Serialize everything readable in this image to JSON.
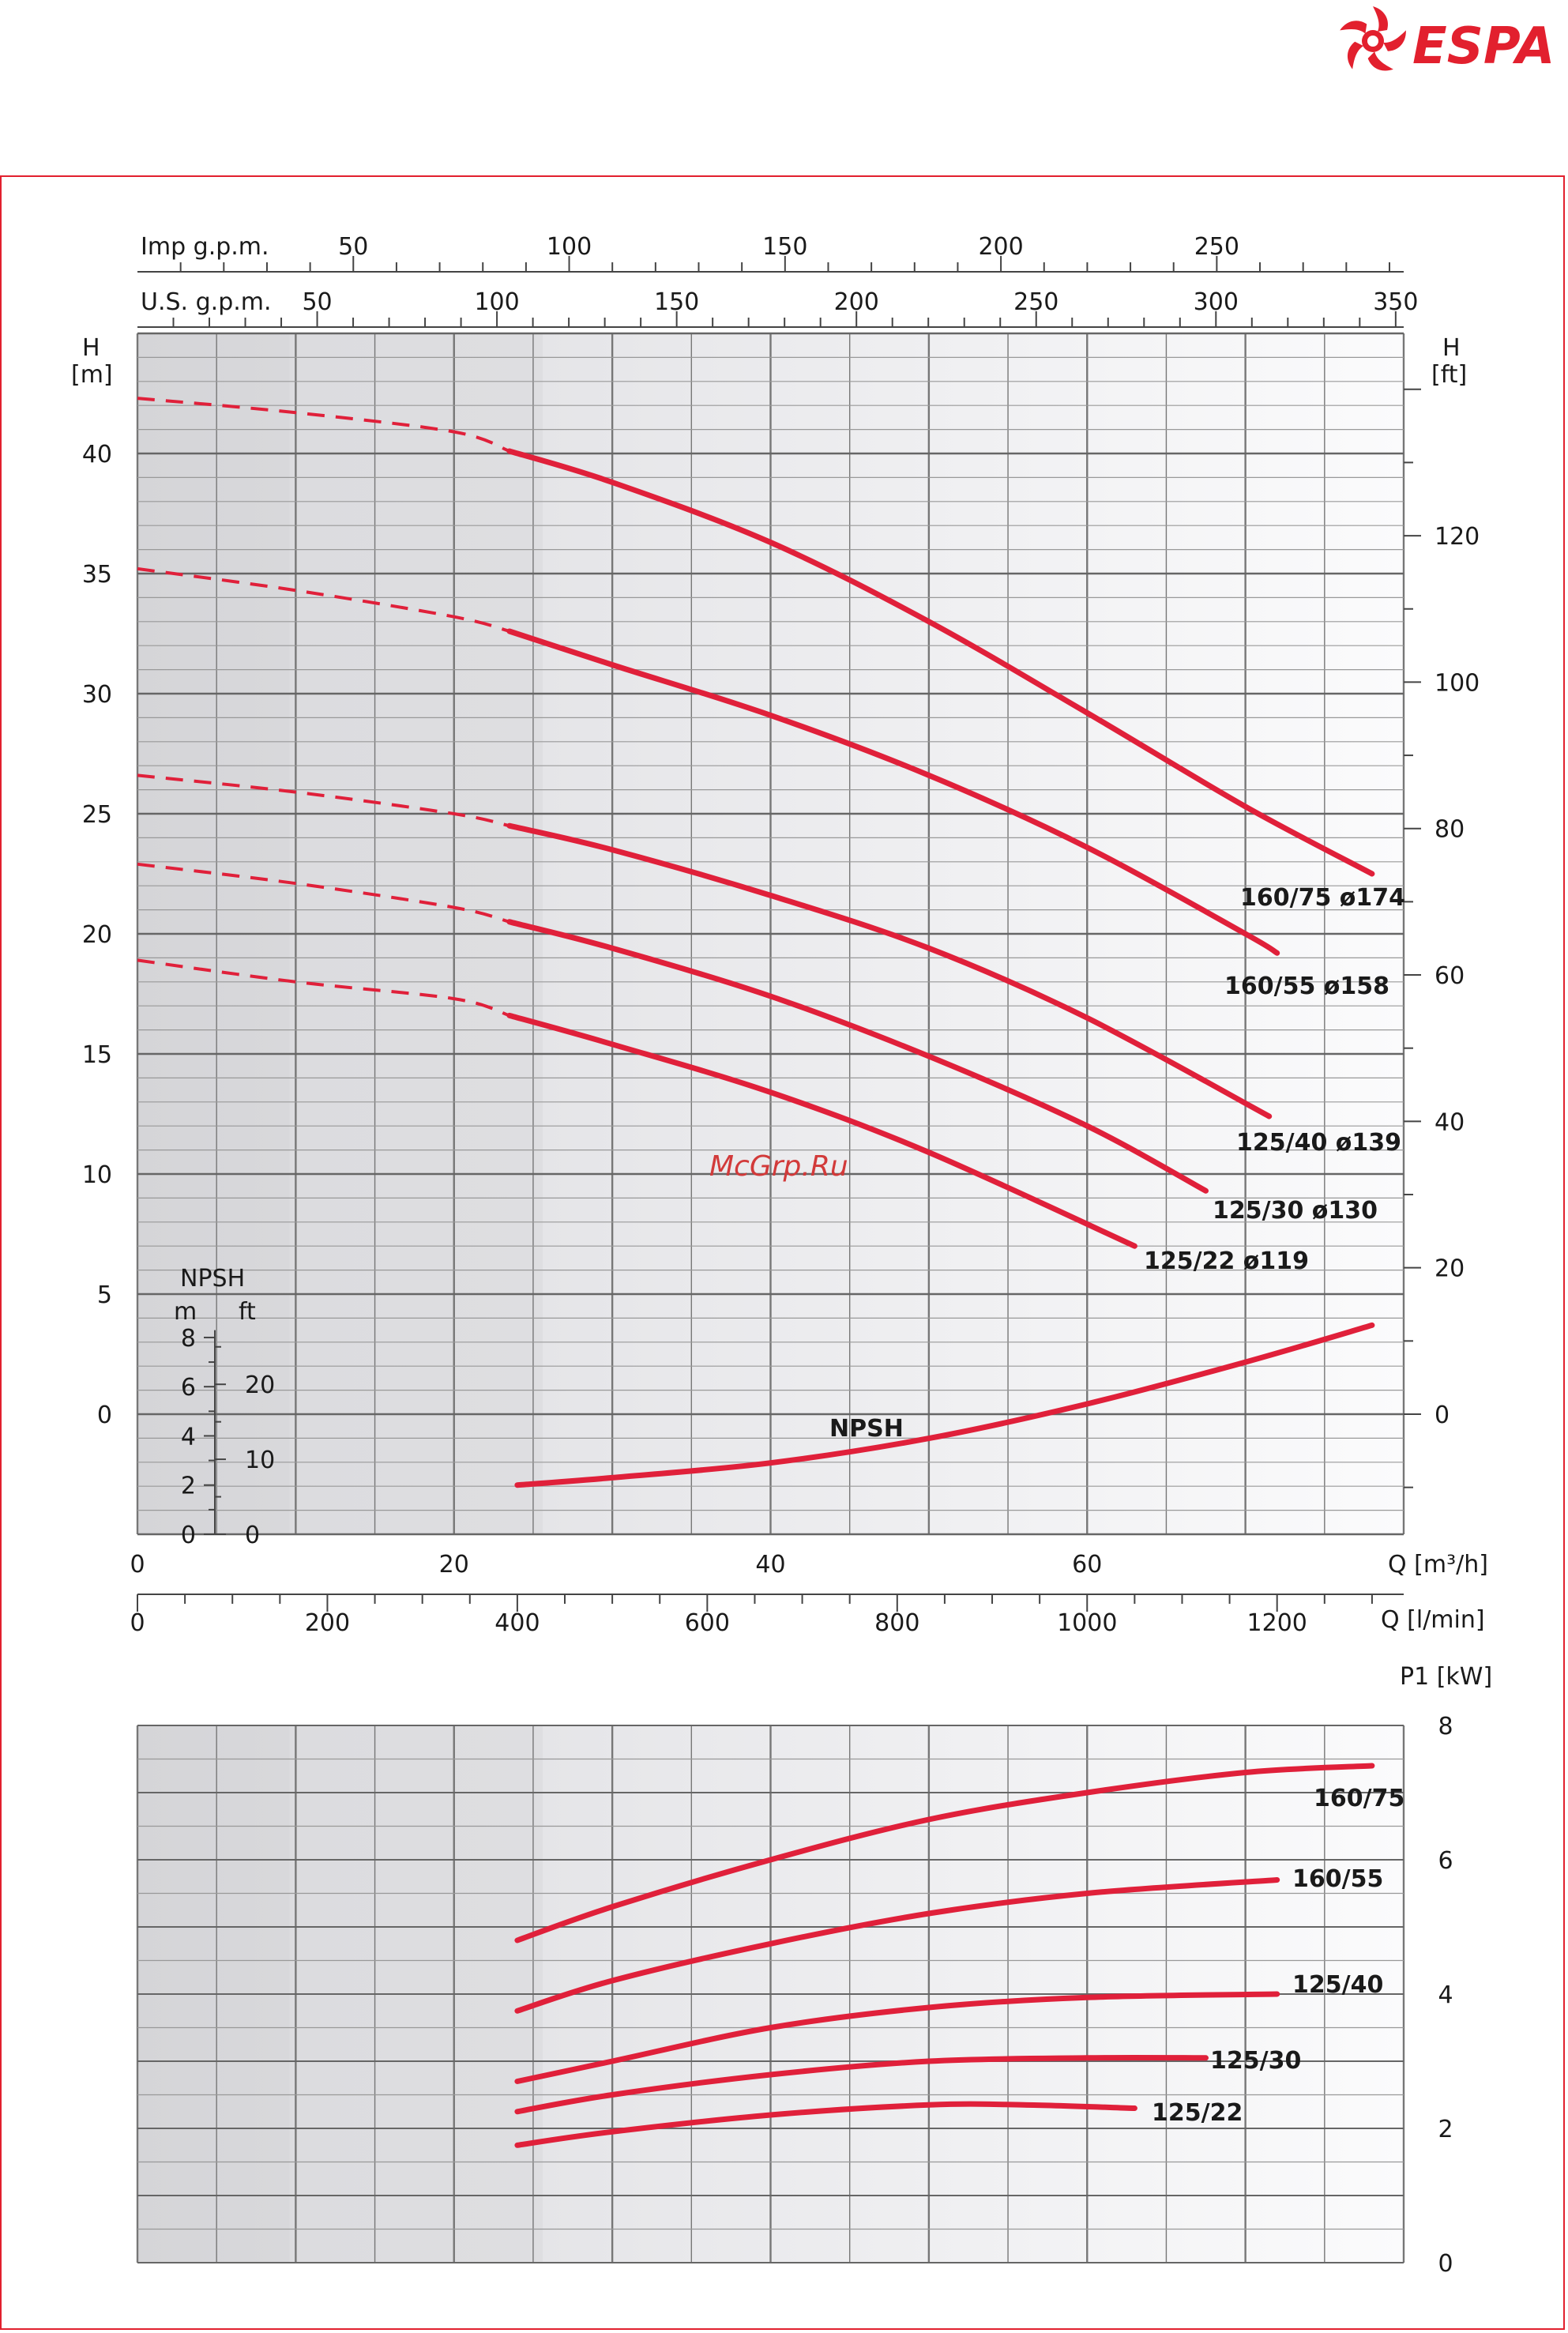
{
  "brand": {
    "name": "ESPA",
    "color": "#e2202e"
  },
  "watermark": "McGrp.Ru",
  "colors": {
    "curve": "#e0203a",
    "grid": "#777777",
    "text": "#1a1a1a"
  },
  "chart_data": [
    {
      "type": "line",
      "panel": "head",
      "x_axis": {
        "label": "Q [m³/h]",
        "range": [
          0,
          80
        ],
        "ticks": [
          0,
          20,
          40,
          60
        ]
      },
      "x_axis_secondary": {
        "label": "Q [l/min]",
        "ticks": [
          0,
          200,
          400,
          600,
          800,
          1000,
          1200
        ]
      },
      "top_axis_imp": {
        "label": "Imp g.p.m.",
        "ticks": [
          50,
          100,
          150,
          200,
          250
        ]
      },
      "top_axis_us": {
        "label": "U.S. g.p.m.",
        "ticks": [
          50,
          100,
          150,
          200,
          250,
          300,
          350
        ]
      },
      "y_axis": {
        "label_top": "H",
        "label_unit": "[m]",
        "range": [
          -5,
          45
        ],
        "ticks": [
          0,
          5,
          10,
          15,
          20,
          25,
          30,
          35,
          40
        ]
      },
      "y_axis_right": {
        "label_top": "H",
        "label_unit": "[ft]",
        "ticks": [
          0,
          20,
          40,
          60,
          80,
          100,
          120
        ]
      },
      "npsh_scale": {
        "title": "NPSH",
        "unit_m": "m",
        "unit_ft": "ft",
        "ticks_m": [
          0,
          2,
          4,
          6,
          8
        ],
        "ticks_ft": [
          0,
          10,
          20
        ]
      },
      "series": [
        {
          "name": "160/75  ø174",
          "dashed": {
            "x": [
              0,
              10,
              20,
              23.5
            ],
            "y": [
              42.3,
              41.7,
              40.9,
              40.1
            ]
          },
          "solid": {
            "x": [
              23.5,
              30,
              40,
              50,
              60,
              70,
              78
            ],
            "y": [
              40.1,
              38.8,
              36.3,
              33.0,
              29.2,
              25.3,
              22.5
            ]
          }
        },
        {
          "name": "160/55  ø158",
          "dashed": {
            "x": [
              0,
              10,
              20,
              23.5
            ],
            "y": [
              35.2,
              34.3,
              33.2,
              32.6
            ]
          },
          "solid": {
            "x": [
              23.5,
              30,
              40,
              50,
              60,
              70,
              72
            ],
            "y": [
              32.6,
              31.2,
              29.1,
              26.6,
              23.6,
              20.0,
              19.2
            ]
          }
        },
        {
          "name": "125/40  ø139",
          "dashed": {
            "x": [
              0,
              10,
              20,
              23.5
            ],
            "y": [
              26.6,
              25.9,
              25.0,
              24.5
            ]
          },
          "solid": {
            "x": [
              23.5,
              30,
              40,
              50,
              60,
              71.5
            ],
            "y": [
              24.5,
              23.5,
              21.6,
              19.4,
              16.5,
              12.4
            ]
          }
        },
        {
          "name": "125/30  ø130",
          "dashed": {
            "x": [
              0,
              10,
              20,
              23.5
            ],
            "y": [
              22.9,
              22.1,
              21.1,
              20.5
            ]
          },
          "solid": {
            "x": [
              23.5,
              30,
              40,
              50,
              60,
              67.5
            ],
            "y": [
              20.5,
              19.4,
              17.4,
              14.9,
              12.0,
              9.3
            ]
          }
        },
        {
          "name": "125/22  ø119",
          "dashed": {
            "x": [
              0,
              10,
              20,
              23.5
            ],
            "y": [
              18.9,
              18.0,
              17.3,
              16.6
            ]
          },
          "solid": {
            "x": [
              23.5,
              30,
              40,
              50,
              63
            ],
            "y": [
              16.6,
              15.4,
              13.4,
              10.9,
              7.0
            ]
          }
        }
      ],
      "npsh_curve": {
        "name": "NPSH",
        "x": [
          24,
          30,
          40,
          50,
          60,
          70,
          78
        ],
        "m": [
          2.0,
          2.3,
          2.9,
          3.9,
          5.3,
          7.0,
          8.5
        ]
      }
    },
    {
      "type": "line",
      "panel": "power",
      "x_axis": {
        "range": [
          0,
          80
        ]
      },
      "y_axis": {
        "label": "P1 [kW]",
        "range": [
          0,
          8
        ],
        "ticks": [
          0,
          2,
          4,
          6,
          8
        ]
      },
      "series": [
        {
          "name": "160/75",
          "x": [
            24,
            30,
            40,
            50,
            60,
            70,
            78
          ],
          "y": [
            4.8,
            5.3,
            6.0,
            6.6,
            7.0,
            7.3,
            7.4
          ]
        },
        {
          "name": "160/55",
          "x": [
            24,
            30,
            40,
            50,
            60,
            72
          ],
          "y": [
            3.75,
            4.2,
            4.75,
            5.2,
            5.5,
            5.7
          ]
        },
        {
          "name": "125/40",
          "x": [
            24,
            30,
            40,
            50,
            60,
            72
          ],
          "y": [
            2.7,
            3.0,
            3.5,
            3.8,
            3.95,
            4.0
          ]
        },
        {
          "name": "125/30",
          "x": [
            24,
            30,
            40,
            50,
            60,
            67.5
          ],
          "y": [
            2.25,
            2.5,
            2.8,
            3.0,
            3.05,
            3.05
          ]
        },
        {
          "name": "125/22",
          "x": [
            24,
            30,
            40,
            50,
            56,
            63
          ],
          "y": [
            1.75,
            1.95,
            2.2,
            2.35,
            2.35,
            2.3
          ]
        }
      ]
    }
  ]
}
